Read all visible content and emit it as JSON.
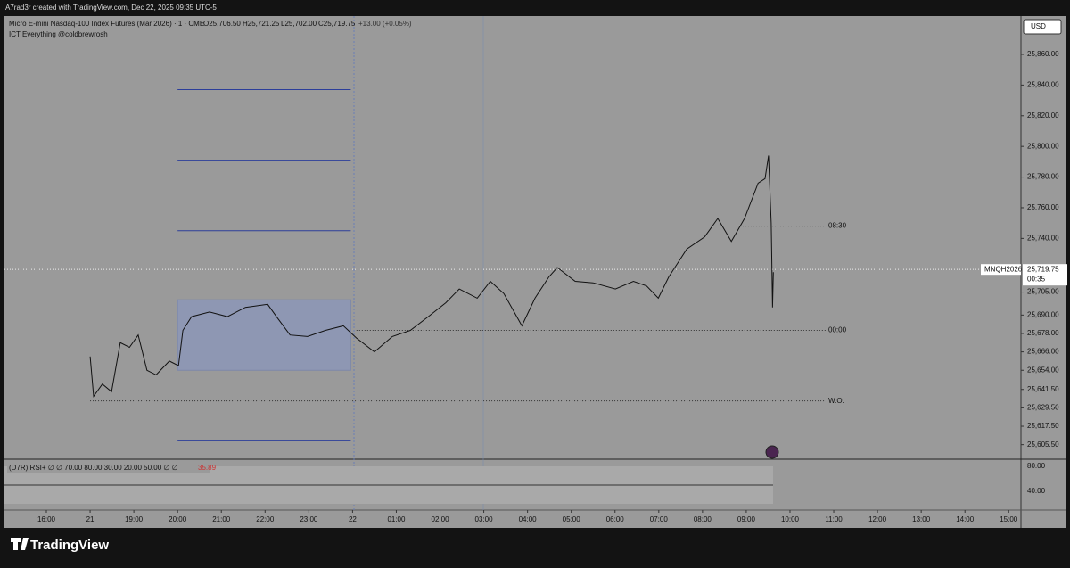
{
  "header": {
    "caption": "A7rad3r created with TradingView.com, Dec 22, 2025 09:35 UTC-5"
  },
  "legend": {
    "symbol": "Micro E-mini Nasdaq-100 Index Futures (Mar 2026) · 1 · CME",
    "open": "O25,706.50",
    "high": "H25,721.25",
    "low": "L25,702.00",
    "close": "C25,719.75",
    "change": "+13.00 (+0.05%)",
    "indicator": "ICT Everything @coldbrewrosh"
  },
  "currency": "USD",
  "chart_data": {
    "type": "line",
    "color": "#111111",
    "x": [
      1.0,
      1.08,
      1.28,
      1.49,
      1.69,
      1.9,
      2.1,
      2.3,
      2.51,
      2.81,
      3.02,
      3.12,
      3.32,
      3.73,
      4.14,
      4.55,
      5.06,
      5.26,
      5.57,
      5.97,
      6.38,
      6.79,
      7.09,
      7.5,
      7.91,
      8.32,
      8.73,
      9.13,
      9.44,
      9.85,
      10.15,
      10.46,
      10.87,
      11.17,
      11.49,
      11.68,
      12.09,
      12.5,
      13.01,
      13.42,
      13.72,
      13.99,
      14.23,
      14.64,
      15.05,
      15.35,
      15.66,
      15.96,
      16.27,
      16.43,
      16.51,
      16.57,
      16.6,
      16.62
    ],
    "values": [
      25663,
      25637,
      25645,
      25640,
      25672,
      25669,
      25677,
      25654,
      25651,
      25660,
      25657,
      25680,
      25689,
      25692,
      25689,
      25695,
      25697,
      25689,
      25677,
      25676,
      25680,
      25683,
      25675,
      25666,
      25676,
      25680,
      25689,
      25698,
      25707,
      25701,
      25712,
      25704,
      25683,
      25701,
      25715,
      25721,
      25712,
      25711,
      25707,
      25712,
      25709,
      25701,
      25715,
      25733,
      25741,
      25753,
      25738,
      25753,
      25776,
      25779,
      25794,
      25750,
      25695,
      25718
    ],
    "xlim": [
      -1.06,
      22.28
    ],
    "ylim": [
      25596,
      25885
    ],
    "xticks": [
      {
        "value": 0,
        "label": "16:00"
      },
      {
        "value": 1,
        "label": "21"
      },
      {
        "value": 2,
        "label": "19:00"
      },
      {
        "value": 3,
        "label": "20:00"
      },
      {
        "value": 4,
        "label": "21:00"
      },
      {
        "value": 5,
        "label": "22:00"
      },
      {
        "value": 6,
        "label": "23:00"
      },
      {
        "value": 7,
        "label": "22"
      },
      {
        "value": 8,
        "label": "01:00"
      },
      {
        "value": 9,
        "label": "02:00"
      },
      {
        "value": 10,
        "label": "03:00"
      },
      {
        "value": 11,
        "label": "04:00"
      },
      {
        "value": 12,
        "label": "05:00"
      },
      {
        "value": 13,
        "label": "06:00"
      },
      {
        "value": 14,
        "label": "07:00"
      },
      {
        "value": 15,
        "label": "08:00"
      },
      {
        "value": 16,
        "label": "09:00"
      },
      {
        "value": 17,
        "label": "10:00"
      },
      {
        "value": 18,
        "label": "11:00"
      },
      {
        "value": 19,
        "label": "12:00"
      },
      {
        "value": 20,
        "label": "13:00"
      },
      {
        "value": 21,
        "label": "14:00"
      },
      {
        "value": 22,
        "label": "15:00"
      }
    ],
    "yticks": [
      {
        "value": 25860,
        "label": "25,860.00"
      },
      {
        "value": 25840,
        "label": "25,840.00"
      },
      {
        "value": 25820,
        "label": "25,820.00"
      },
      {
        "value": 25800,
        "label": "25,800.00"
      },
      {
        "value": 25780,
        "label": "25,780.00"
      },
      {
        "value": 25760,
        "label": "25,760.00"
      },
      {
        "value": 25740,
        "label": "25,740.00"
      },
      {
        "value": 25705,
        "label": "25,705.00"
      },
      {
        "value": 25690,
        "label": "25,690.00"
      },
      {
        "value": 25678,
        "label": "25,678.00"
      },
      {
        "value": 25666,
        "label": "25,666.00"
      },
      {
        "value": 25654,
        "label": "25,654.00"
      },
      {
        "value": 25641.5,
        "label": "25,641.50"
      },
      {
        "value": 25629.5,
        "label": "25,629.50"
      },
      {
        "value": 25617.5,
        "label": "25,617.50"
      },
      {
        "value": 25605.5,
        "label": "25,605.50"
      }
    ],
    "last": {
      "value": 25719.75,
      "label": "25,719.75",
      "countdown": "00:35",
      "symbol_tag": "MNQH2026"
    },
    "range_lines": [
      25837,
      25791,
      25745,
      25608
    ],
    "range_box": [
      25654,
      25700
    ],
    "levels": [
      {
        "name": "08:30",
        "value": 25748,
        "from": 15.86
      },
      {
        "name": "00:00",
        "value": 25680,
        "from": 7.09
      },
      {
        "name": "W.O.",
        "value": 25634,
        "from": 1.0
      }
    ],
    "rsi": {
      "title": "(D7R) RSI+ ∅ ∅ 70.00 80.00 30.00 20.00 50.00 ∅ ∅",
      "last": "35.89",
      "ticks": [
        "80.00",
        "40.00"
      ]
    }
  },
  "footer": {
    "brand": "TradingView"
  }
}
